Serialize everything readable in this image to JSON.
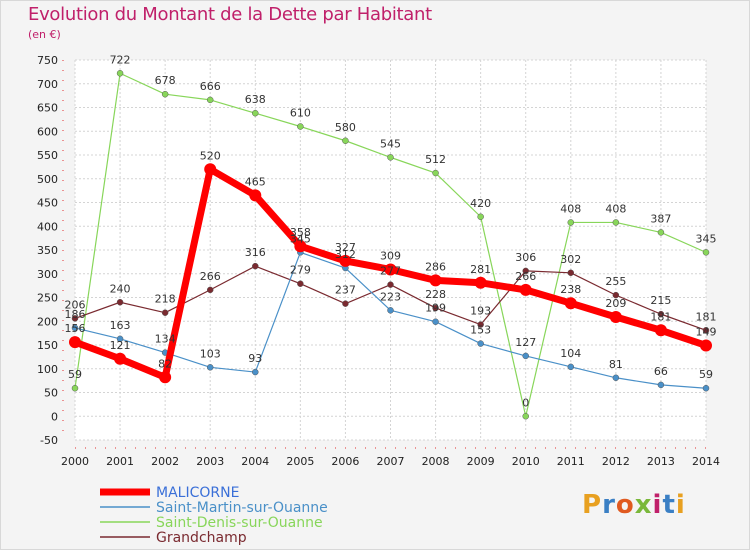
{
  "title": "Evolution du Montant de la Dette par Habitant",
  "unit": "(en €)",
  "logo": {
    "text": "Proxiti",
    "colors": [
      "#e8a020",
      "#3a7fc4",
      "#e05a20",
      "#7ab83a",
      "#c0206a",
      "#3a7fc4",
      "#e8a020"
    ]
  },
  "chart_data": {
    "type": "line",
    "x": [
      2000,
      2001,
      2002,
      2003,
      2004,
      2005,
      2006,
      2007,
      2008,
      2009,
      2010,
      2011,
      2012,
      2013,
      2014
    ],
    "ylim": [
      -50,
      750
    ],
    "yticks": [
      -50,
      0,
      50,
      100,
      150,
      200,
      250,
      300,
      350,
      400,
      450,
      500,
      550,
      600,
      650,
      700,
      750
    ],
    "grid": true,
    "series": [
      {
        "name": "Saint-Denis-sur-Ouanne",
        "color": "#88d65a",
        "width": 1.2,
        "values": [
          59,
          722,
          678,
          666,
          638,
          610,
          580,
          545,
          512,
          420,
          0,
          408,
          408,
          387,
          345
        ]
      },
      {
        "name": "Grandchamp",
        "color": "#7a2a30",
        "width": 1.2,
        "values": [
          206,
          240,
          218,
          266,
          316,
          279,
          237,
          277,
          228,
          193,
          306,
          302,
          255,
          215,
          181
        ]
      },
      {
        "name": "Saint-Martin-sur-Ouanne",
        "color": "#4a90c8",
        "width": 1.2,
        "values": [
          186,
          163,
          134,
          103,
          93,
          345,
          312,
          223,
          199,
          153,
          127,
          104,
          81,
          66,
          59
        ]
      },
      {
        "name": "MALICORNE",
        "color": "#ff0000",
        "width": 7,
        "values": [
          156,
          121,
          82,
          520,
          465,
          358,
          327,
          309,
          286,
          281,
          266,
          238,
          209,
          181,
          149
        ]
      }
    ],
    "legend": [
      {
        "name": "MALICORNE",
        "color": "#ff0000"
      },
      {
        "name": "Saint-Martin-sur-Ouanne",
        "color": "#4a90c8"
      },
      {
        "name": "Saint-Denis-sur-Ouanne",
        "color": "#88d65a"
      },
      {
        "name": "Grandchamp",
        "color": "#7a2a30"
      }
    ]
  }
}
